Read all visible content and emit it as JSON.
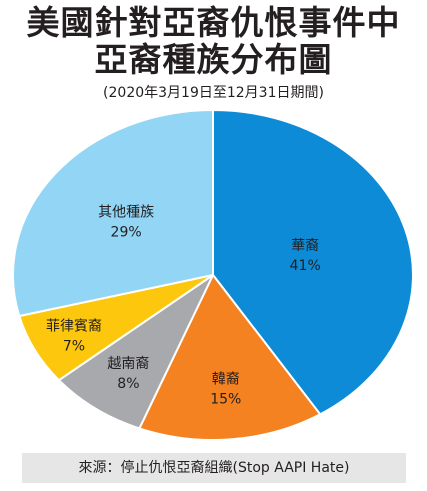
{
  "header": {
    "title_line1": "美國針對亞裔仇恨事件中",
    "title_line2": "亞裔種族分布圖",
    "subtitle": "(2020年3月19日至12月31日期間)"
  },
  "chart_data": {
    "type": "pie",
    "title": "美國針對亞裔仇恨事件中亞裔種族分布圖",
    "subtitle": "(2020年3月19日至12月31日期間)",
    "start_angle_deg": 0,
    "direction": "clockwise",
    "unit": "%",
    "slices": [
      {
        "label": "華裔",
        "value": 41,
        "value_label": "41%",
        "color": "#0e8bd6"
      },
      {
        "label": "韓裔",
        "value": 15,
        "value_label": "15%",
        "color": "#f58220"
      },
      {
        "label": "越南裔",
        "value": 8,
        "value_label": "8%",
        "color": "#a7a9ac"
      },
      {
        "label": "菲律賓裔",
        "value": 7,
        "value_label": "7%",
        "color": "#fdc70e"
      },
      {
        "label": "其他種族",
        "value": 29,
        "value_label": "29%",
        "color": "#92d5f5"
      }
    ]
  },
  "footer": {
    "source": "來源：停止仇恨亞裔組織(Stop AAPI Hate)"
  }
}
